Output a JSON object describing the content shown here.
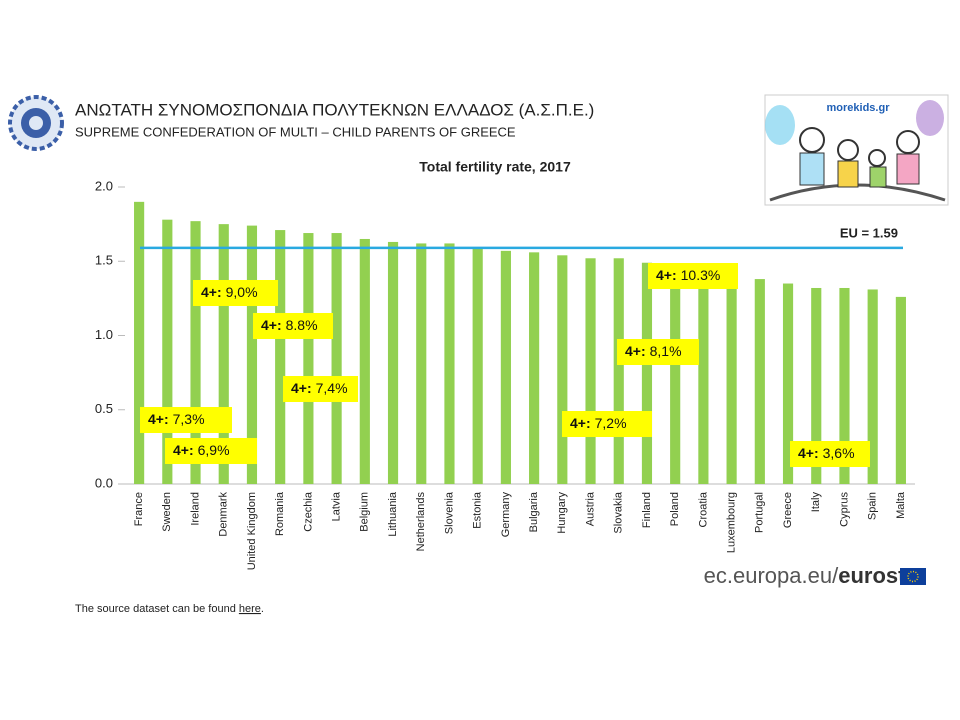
{
  "header": {
    "title": "ΑΝΩΤΑΤΗ ΣΥΝΟΜΟΣΠΟΝΔΙΑ ΠΟΛΥΤΕΚΝΩΝ ΕΛΛΑΔΟΣ (Α.Σ.Π.Ε.)",
    "subtitle": "SUPREME CONFEDERATION OF MULTI – CHILD PARENTS OF GREECE",
    "badge": "morekids.gr"
  },
  "chart_data": {
    "type": "bar",
    "title": "Total fertility rate, 2017",
    "categories": [
      "France",
      "Sweden",
      "Ireland",
      "Denmark",
      "United Kingdom",
      "Romania",
      "Czechia",
      "Latvia",
      "Belgium",
      "Lithuania",
      "Netherlands",
      "Slovenia",
      "Estonia",
      "Germany",
      "Bulgaria",
      "Hungary",
      "Austria",
      "Slovakia",
      "Finland",
      "Poland",
      "Croatia",
      "Luxembourg",
      "Portugal",
      "Greece",
      "Italy",
      "Cyprus",
      "Spain",
      "Malta"
    ],
    "values": [
      1.9,
      1.78,
      1.77,
      1.75,
      1.74,
      1.71,
      1.69,
      1.69,
      1.65,
      1.63,
      1.62,
      1.62,
      1.59,
      1.57,
      1.56,
      1.54,
      1.52,
      1.52,
      1.49,
      1.48,
      1.42,
      1.39,
      1.38,
      1.35,
      1.32,
      1.32,
      1.31,
      1.26
    ],
    "color": "#92d050",
    "ylim": [
      0,
      2
    ],
    "yticks": [
      {
        "value": 0,
        "label": "0.0"
      },
      {
        "value": 0.5,
        "label": "0.5"
      },
      {
        "value": 1,
        "label": "1.0"
      },
      {
        "value": 1.5,
        "label": "1.5"
      },
      {
        "value": 2,
        "label": "2.0"
      }
    ],
    "reference_line": {
      "value": 1.59,
      "label": "EU = 1.59",
      "color": "#29a9e0"
    },
    "annotations": [
      {
        "prefix": "4+:",
        "label": "9,0%"
      },
      {
        "prefix": "4+:",
        "label": "8.8%"
      },
      {
        "prefix": "4+:",
        "label": "7,4%"
      },
      {
        "prefix": "4+:",
        "label": "7,3%"
      },
      {
        "prefix": "4+:",
        "label": "6,9%"
      },
      {
        "prefix": "4+:",
        "label": "7,2%"
      },
      {
        "prefix": "4+:",
        "label": "8,1%"
      },
      {
        "prefix": "4+:",
        "label": "10.3%"
      },
      {
        "prefix": "4+:",
        "label": "3,6%"
      }
    ]
  },
  "footer": {
    "site": "ec.europa.eu/",
    "brand": "eurostat",
    "note": "The source dataset can be found ",
    "link": "here",
    "end": "."
  }
}
